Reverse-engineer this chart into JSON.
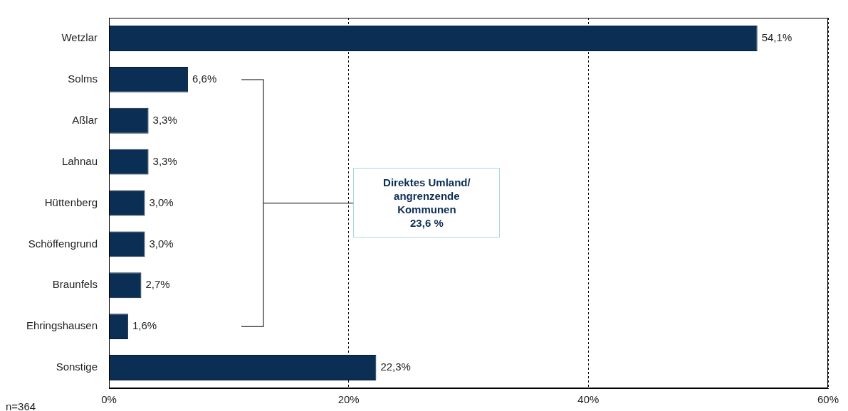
{
  "chart_data": {
    "type": "bar",
    "orientation": "horizontal",
    "categories": [
      "Wetzlar",
      "Solms",
      "Aßlar",
      "Lahnau",
      "Hüttenberg",
      "Schöffengrund",
      "Braunfels",
      "Ehringshausen",
      "Sonstige"
    ],
    "values": [
      54.1,
      6.6,
      3.3,
      3.3,
      3.0,
      3.0,
      2.7,
      1.6,
      22.3
    ],
    "color": "#0b2e55",
    "value_labels": [
      "54,1%",
      "6,6%",
      "3,3%",
      "3,3%",
      "3,0%",
      "3,0%",
      "2,7%",
      "1,6%",
      "22,3%"
    ],
    "xlim": [
      0,
      60
    ],
    "xticks": [
      {
        "value": 0,
        "label": "0%"
      },
      {
        "value": 20,
        "label": "20%"
      },
      {
        "value": 40,
        "label": "40%"
      },
      {
        "value": 60,
        "label": "60%"
      }
    ],
    "grid": "x",
    "line_style": "dashed",
    "legend": false,
    "annotations": [
      "Direktes Umland/\nangrenzende\nKommunen\n23,6 %",
      "n=364"
    ]
  }
}
